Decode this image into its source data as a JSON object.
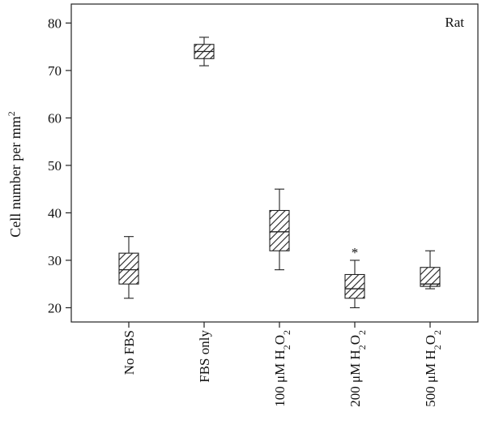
{
  "chart_data": {
    "type": "box",
    "ylabel": "Cell number per mm",
    "ylabel_superscript": "2",
    "panel_label": "Rat",
    "ylim": [
      17,
      84
    ],
    "yticks": [
      20,
      30,
      40,
      50,
      60,
      70,
      80
    ],
    "categories": [
      {
        "main": "No FBS",
        "sub": "",
        "tail": ""
      },
      {
        "main": "FBS only",
        "sub": "",
        "tail": ""
      },
      {
        "main": "100 μM H",
        "sub": "2",
        "tail": "O",
        "sub2": "2"
      },
      {
        "main": "200 μM H",
        "sub": "2",
        "tail": "O",
        "sub2": "2"
      },
      {
        "main": "500 μM H",
        "sub": "2",
        "tail": "O",
        "sub2": "2"
      }
    ],
    "boxes": [
      {
        "min": 22,
        "q1": 25,
        "median": 28,
        "q3": 31.5,
        "max": 35,
        "annotation": ""
      },
      {
        "min": 71,
        "q1": 72.5,
        "median": 74,
        "q3": 75.5,
        "max": 77,
        "annotation": ""
      },
      {
        "min": 28,
        "q1": 32,
        "median": 36,
        "q3": 40.5,
        "max": 45,
        "annotation": ""
      },
      {
        "min": 20,
        "q1": 22,
        "median": 24,
        "q3": 27,
        "max": 30,
        "annotation": "*"
      },
      {
        "min": 24,
        "q1": 24.5,
        "median": 25,
        "q3": 28.5,
        "max": 32,
        "annotation": ""
      }
    ]
  }
}
